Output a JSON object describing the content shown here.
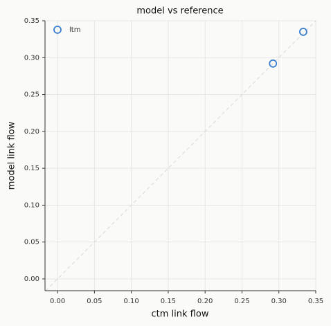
{
  "chart_data": {
    "type": "scatter",
    "title": "model vs reference",
    "x_label": "ctm link flow",
    "y_label": "model link flow",
    "series": [
      {
        "name": "ltm",
        "color": "#3a7fd0",
        "x": [
          0.292,
          0.333
        ],
        "values": [
          0.292,
          0.335
        ]
      }
    ],
    "xlim": [
      -0.017,
      0.35
    ],
    "ylim": [
      -0.016,
      0.35
    ],
    "xticks": [
      {
        "value": 0,
        "label": "0.00"
      },
      {
        "value": 0.05,
        "label": "0.05"
      },
      {
        "value": 0.1,
        "label": "0.10"
      },
      {
        "value": 0.15,
        "label": "0.15"
      },
      {
        "value": 0.2,
        "label": "0.20"
      },
      {
        "value": 0.25,
        "label": "0.25"
      },
      {
        "value": 0.3,
        "label": "0.30"
      },
      {
        "value": 0.35,
        "label": "0.35"
      }
    ],
    "yticks": [
      {
        "value": 0,
        "label": "0.00"
      },
      {
        "value": 0.05,
        "label": "0.05"
      },
      {
        "value": 0.1,
        "label": "0.10"
      },
      {
        "value": 0.15,
        "label": "0.15"
      },
      {
        "value": 0.2,
        "label": "0.20"
      },
      {
        "value": 0.25,
        "label": "0.25"
      },
      {
        "value": 0.3,
        "label": "0.30"
      },
      {
        "value": 0.35,
        "label": "0.35"
      }
    ],
    "grid": true,
    "legend": "upper-left"
  }
}
